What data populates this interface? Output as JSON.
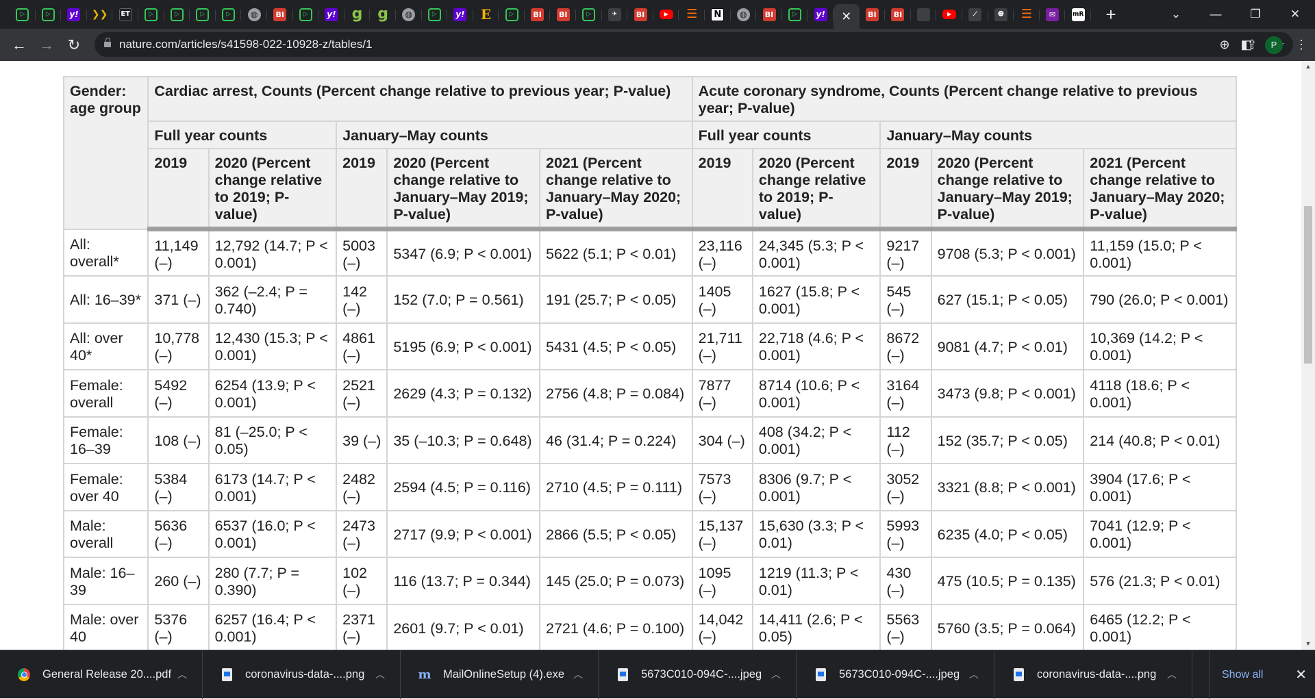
{
  "tabs": [
    {
      "icon": "play-icon",
      "glyph": "▷",
      "type": "play"
    },
    {
      "icon": "play-icon",
      "glyph": "▷",
      "type": "play"
    },
    {
      "icon": "yahoo-icon",
      "glyph": "y!",
      "type": "yahoo"
    },
    {
      "icon": "arrows-icon",
      "glyph": "❯❯",
      "type": "arr"
    },
    {
      "icon": "et-icon",
      "glyph": "ET",
      "type": "et"
    },
    {
      "icon": "play-icon",
      "glyph": "▷",
      "type": "play"
    },
    {
      "icon": "play-icon",
      "glyph": "▷",
      "type": "play"
    },
    {
      "icon": "play-icon",
      "glyph": "▷",
      "type": "play"
    },
    {
      "icon": "play-icon",
      "glyph": "▷",
      "type": "play"
    },
    {
      "icon": "globe-icon",
      "glyph": "◍",
      "type": "globe"
    },
    {
      "icon": "bi-icon",
      "glyph": "BI",
      "type": "bi"
    },
    {
      "icon": "play-icon",
      "glyph": "▷",
      "type": "play"
    },
    {
      "icon": "yahoo-icon",
      "glyph": "y!",
      "type": "yahoo"
    },
    {
      "icon": "g-icon",
      "glyph": "g",
      "type": "g"
    },
    {
      "icon": "g-icon",
      "glyph": "g",
      "type": "g"
    },
    {
      "icon": "globe-icon",
      "glyph": "◍",
      "type": "globe"
    },
    {
      "icon": "play-icon",
      "glyph": "▷",
      "type": "play"
    },
    {
      "icon": "yahoo-icon",
      "glyph": "y!",
      "type": "yahoo"
    },
    {
      "icon": "e-icon",
      "glyph": "E",
      "type": "e"
    },
    {
      "icon": "play-icon",
      "glyph": "▷",
      "type": "play"
    },
    {
      "icon": "bi-icon",
      "glyph": "BI",
      "type": "bi"
    },
    {
      "icon": "bi-icon",
      "glyph": "BI",
      "type": "bi"
    },
    {
      "icon": "play-icon",
      "glyph": "▷",
      "type": "play"
    },
    {
      "icon": "bird-icon",
      "glyph": "✈",
      "type": "dark"
    },
    {
      "icon": "bi-icon",
      "glyph": "BI",
      "type": "bi"
    },
    {
      "icon": "youtube-icon",
      "glyph": "▶",
      "type": "yt"
    },
    {
      "icon": "bookmark-icon",
      "glyph": "☰",
      "type": "bm"
    },
    {
      "icon": "n-icon",
      "glyph": "N",
      "type": "n"
    },
    {
      "icon": "globe-icon",
      "glyph": "◍",
      "type": "globe"
    },
    {
      "icon": "bi-icon",
      "glyph": "BI",
      "type": "bi"
    },
    {
      "icon": "play-icon",
      "glyph": "▷",
      "type": "play"
    },
    {
      "icon": "yahoo-icon",
      "glyph": "y!",
      "type": "yahoo"
    },
    {
      "icon": "close-icon",
      "glyph": "✕",
      "type": "active"
    },
    {
      "icon": "bi-icon",
      "glyph": "BI",
      "type": "bi"
    },
    {
      "icon": "bi-icon",
      "glyph": "BI",
      "type": "bi"
    },
    {
      "icon": "blank-icon",
      "glyph": "",
      "type": "dark"
    },
    {
      "icon": "youtube-icon",
      "glyph": "▶",
      "type": "yt"
    },
    {
      "icon": "slash-icon",
      "glyph": "⟋",
      "type": "dark"
    },
    {
      "icon": "person-icon",
      "glyph": "☻",
      "type": "dark"
    },
    {
      "icon": "bookmark-icon",
      "glyph": "☰",
      "type": "bm"
    },
    {
      "icon": "mail-icon",
      "glyph": "✉",
      "type": "mail"
    },
    {
      "icon": "mr-icon",
      "glyph": "mR",
      "type": "mr"
    }
  ],
  "browser": {
    "url": "nature.com/articles/s41598-022-10928-z/tables/1",
    "avatar_letter": "P"
  },
  "table": {
    "header": {
      "group_col": "Gender: age group",
      "section_a": "Cardiac arrest, Counts (Percent change relative to previous year; P-value)",
      "section_b": "Acute coronary syndrome, Counts (Percent change relative to previous year; P-value)",
      "full_year": "Full year counts",
      "jan_may": "January–May counts",
      "y2019": "2019",
      "y2020_full": "2020 (Percent change relative to 2019; P-value)",
      "y2020_jm": "2020 (Percent change relative to January–May 2019; P-value)",
      "y2021_jm": "2021 (Percent change relative to January–May 2020; P-value)"
    },
    "rows": [
      [
        "All: overall*",
        "11,149 (–)",
        "12,792 (14.7; P < 0.001)",
        "5003 (–)",
        "5347 (6.9; P < 0.001)",
        "5622 (5.1; P < 0.01)",
        "23,116 (–)",
        "24,345 (5.3; P < 0.001)",
        "9217 (–)",
        "9708 (5.3; P < 0.001)",
        "11,159 (15.0; P < 0.001)"
      ],
      [
        "All: 16–39*",
        "371 (–)",
        "362 (–2.4; P = 0.740)",
        "142 (–)",
        "152 (7.0; P = 0.561)",
        "191 (25.7; P < 0.05)",
        "1405 (–)",
        "1627 (15.8; P < 0.001)",
        "545 (–)",
        "627 (15.1; P < 0.05)",
        "790 (26.0; P < 0.001)"
      ],
      [
        "All: over 40*",
        "10,778 (–)",
        "12,430 (15.3; P < 0.001)",
        "4861 (–)",
        "5195 (6.9; P < 0.001)",
        "5431 (4.5; P < 0.05)",
        "21,711 (–)",
        "22,718 (4.6; P < 0.001)",
        "8672 (–)",
        "9081 (4.7; P < 0.01)",
        "10,369 (14.2; P < 0.001)"
      ],
      [
        "Female: overall",
        "5492 (–)",
        "6254 (13.9; P < 0.001)",
        "2521 (–)",
        "2629 (4.3; P = 0.132)",
        "2756 (4.8; P = 0.084)",
        "7877 (–)",
        "8714 (10.6; P < 0.001)",
        "3164 (–)",
        "3473 (9.8; P < 0.001)",
        "4118 (18.6; P < 0.001)"
      ],
      [
        "Female: 16–39",
        "108 (–)",
        "81 (–25.0; P < 0.05)",
        "39 (–)",
        "35 (–10.3; P = 0.648)",
        "46 (31.4; P = 0.224)",
        "304 (–)",
        "408 (34.2; P < 0.001)",
        "112 (–)",
        "152 (35.7; P < 0.05)",
        "214 (40.8; P < 0.01)"
      ],
      [
        "Female: over 40",
        "5384 (–)",
        "6173 (14.7; P < 0.001)",
        "2482 (–)",
        "2594 (4.5; P = 0.116)",
        "2710 (4.5; P = 0.111)",
        "7573 (–)",
        "8306 (9.7; P < 0.001)",
        "3052 (–)",
        "3321 (8.8; P < 0.001)",
        "3904 (17.6; P < 0.001)"
      ],
      [
        "Male: overall",
        "5636 (–)",
        "6537 (16.0; P < 0.001)",
        "2473 (–)",
        "2717 (9.9; P < 0.001)",
        "2866 (5.5; P < 0.05)",
        "15,137 (–)",
        "15,630 (3.3; P < 0.01)",
        "5993 (–)",
        "6235 (4.0; P < 0.05)",
        "7041 (12.9; P < 0.001)"
      ],
      [
        "Male: 16–39",
        "260 (–)",
        "280 (7.7; P = 0.390)",
        "102 (–)",
        "116 (13.7; P = 0.344)",
        "145 (25.0; P = 0.073)",
        "1095 (–)",
        "1219 (11.3; P < 0.01)",
        "430 (–)",
        "475 (10.5; P = 0.135)",
        "576 (21.3; P < 0.01)"
      ],
      [
        "Male: over 40",
        "5376 (–)",
        "6257 (16.4; P < 0.001)",
        "2371 (–)",
        "2601 (9.7; P < 0.01)",
        "2721 (4.6; P = 0.100)",
        "14,042 (–)",
        "14,411 (2.6; P < 0.05)",
        "5563 (–)",
        "5760 (3.5; P = 0.064)",
        "6465 (12.2; P < 0.001)"
      ]
    ]
  },
  "downloads": {
    "items": [
      {
        "name": "General Release 20....pdf",
        "icon": "chrome-icon"
      },
      {
        "name": "coronavirus-data-....png",
        "icon": "file-icon"
      },
      {
        "name": "MailOnlineSetup (4).exe",
        "icon": "m-icon"
      },
      {
        "name": "5673C010-094C-....jpeg",
        "icon": "file-icon"
      },
      {
        "name": "5673C010-094C-....jpeg",
        "icon": "file-icon"
      },
      {
        "name": "coronavirus-data-....png",
        "icon": "file-icon"
      }
    ],
    "show_all": "Show all"
  }
}
